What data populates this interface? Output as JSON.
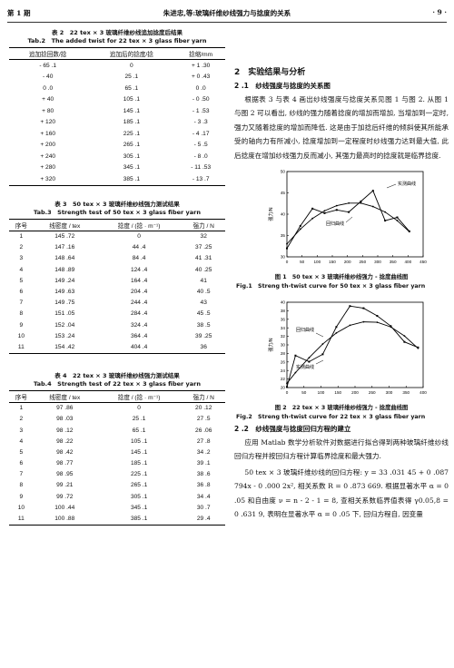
{
  "header": {
    "issue": "第 1 期",
    "running_title": "朱进忠,等:玻璃纤维纱线强力与捻度的关系",
    "page": "· 9 ·"
  },
  "table2": {
    "caption_cn": "表 2　22 tex × 3 玻璃纤维纱线追加捻度后结果",
    "caption_en": "Tab.2　The added twist for 22 tex × 3 glass fiber yarn",
    "headers": [
      "追加捻回数/捻",
      "追加后的捻度/捻",
      "捻缩/mm"
    ],
    "rows": [
      [
        "- 65 .1",
        "0",
        "+ 1 .30"
      ],
      [
        "- 40",
        "25 .1",
        "+ 0 .43"
      ],
      [
        "0 .0",
        "65 .1",
        "0 .0"
      ],
      [
        "+ 40",
        "105 .1",
        "- 0 .50"
      ],
      [
        "+ 80",
        "145 .1",
        "- 1 .53"
      ],
      [
        "+ 120",
        "185 .1",
        "- 3 .3"
      ],
      [
        "+ 160",
        "225 .1",
        "- 4 .17"
      ],
      [
        "+ 200",
        "265 .1",
        "- 5 .5"
      ],
      [
        "+ 240",
        "305 .1",
        "- 8 .0"
      ],
      [
        "+ 280",
        "345 .1",
        "- 11 .53"
      ],
      [
        "+ 320",
        "385 .1",
        "- 13 .7"
      ]
    ]
  },
  "table3": {
    "caption_cn": "表 3　50 tex × 3 玻璃纤维纱线强力测试结果",
    "caption_en": "Tab.3　Strength test of 50 tex × 3 glass fiber yarn",
    "headers": [
      "序号",
      "线密度 / tex",
      "捻度 / (捻 · m⁻¹)",
      "强力 / N"
    ],
    "rows": [
      [
        "1",
        "145 .72",
        "0",
        "32"
      ],
      [
        "2",
        "147 .16",
        "44 .4",
        "37 .25"
      ],
      [
        "3",
        "148 .64",
        "84 .4",
        "41 .31"
      ],
      [
        "4",
        "148 .89",
        "124 .4",
        "40 .25"
      ],
      [
        "5",
        "149 .24",
        "164 .4",
        "41"
      ],
      [
        "6",
        "149 .63",
        "204 .4",
        "40 .5"
      ],
      [
        "7",
        "149 .75",
        "244 .4",
        "43"
      ],
      [
        "8",
        "151 .05",
        "284 .4",
        "45 .5"
      ],
      [
        "9",
        "152 .04",
        "324 .4",
        "38 .5"
      ],
      [
        "10",
        "153 .24",
        "364 .4",
        "39 .25"
      ],
      [
        "11",
        "154 .42",
        "404 .4",
        "36"
      ]
    ]
  },
  "table4": {
    "caption_cn": "表 4　22 tex × 3 玻璃纤维纱线强力测试结果",
    "caption_en": "Tab.4　Strength test of 22 tex × 3 glass fiber yarn",
    "headers": [
      "序号",
      "线密度 / tex",
      "捻度 / (捻 · m⁻¹)",
      "强力 / N"
    ],
    "rows": [
      [
        "1",
        "97 .86",
        "0",
        "20 .12"
      ],
      [
        "2",
        "98 .03",
        "25 .1",
        "27 .5"
      ],
      [
        "3",
        "98 .12",
        "65 .1",
        "26 .06"
      ],
      [
        "4",
        "98 .22",
        "105 .1",
        "27 .8"
      ],
      [
        "5",
        "98 .42",
        "145 .1",
        "34 .2"
      ],
      [
        "6",
        "98 .77",
        "185 .1",
        "39 .1"
      ],
      [
        "7",
        "98 .95",
        "225 .1",
        "38 .6"
      ],
      [
        "8",
        "99 .21",
        "265 .1",
        "36 .8"
      ],
      [
        "9",
        "99 .72",
        "305 .1",
        "34 .4"
      ],
      [
        "10",
        "100 .44",
        "345 .1",
        "30 .7"
      ],
      [
        "11",
        "100 .88",
        "385 .1",
        "29 .4"
      ]
    ]
  },
  "section": {
    "title": "2　实验结果与分析",
    "sub1": "2 .1　纱线强度与捻度的关系图",
    "para1": "根据表 3 与表 4 画出纱线强度与捻度关系见图 1 与图 2. 从图 1 与图 2 可以看出, 纱线的强力随着捻度的增加而增加, 当增加到一定时, 强力又随着捻度的增加而降低. 这是由于加捻后纤维的倾斜使其所能承受的轴向力有所减小, 捻度增加到一定程度时纱线强力达到最大值, 此后捻度在增加纱线强力反而减小, 其强力最高时的捻度就是临界捻度.",
    "sub2": "2 .2　纱线强度与捻度回归方程的建立",
    "para2": "应用 Matlab 数学分析软件对数据进行拟合得到两种玻璃纤维纱线回归方程并按回归方程计算临界捻度和最大强力.",
    "para3": "50 tex × 3 玻璃纤维纱线的回归方程: y = 33 .031 45 + 0 .087 794x - 0 .000 2x², 相关系数 R = 0 .873 669. 根据显著水平 α = 0 .05 和自由度 ν = n - 2 - 1 = 8, 查相关系数临界值表得 γ0.05,8 = 0 .631 9, 表明在显著水平 α = 0 .05 下, 回归方程自, 因变量"
  },
  "fig1": {
    "caption_cn": "图 1　50 tex × 3 玻璃纤维纱线强力 - 捻度曲线图",
    "caption_en": "Fig.1　Streng th-twist curve for 50 tex × 3 glass fiber yarn",
    "label_measured": "实测曲线",
    "label_regression": "回归曲线",
    "ylabel": "强力/N"
  },
  "fig2": {
    "caption_cn": "图 2　22 tex × 3 玻璃纤维纱线强力 - 捻度曲线图",
    "caption_en": "Fig.2　Streng th-twist curve for 22 tex × 3 glass fiber yarn",
    "label_measured": "实测曲线",
    "label_regression": "回归曲线",
    "ylabel": "强力/N"
  },
  "chart_data": [
    {
      "type": "line",
      "ylabel": "强力/N",
      "xlim": [
        0,
        450
      ],
      "ylim": [
        30,
        50
      ],
      "xticks": [
        0,
        50,
        100,
        150,
        200,
        250,
        300,
        350,
        400,
        450
      ],
      "yticks": [
        30,
        35,
        40,
        45,
        50
      ],
      "series": [
        {
          "name": "实测曲线",
          "x": [
            0,
            44.4,
            84.4,
            124.4,
            164.4,
            204.4,
            244.4,
            284.4,
            324.4,
            364.4,
            404.4
          ],
          "y": [
            32,
            37.25,
            41.31,
            40.25,
            41,
            40.5,
            43,
            45.5,
            38.5,
            39.25,
            36
          ]
        },
        {
          "name": "回归曲线",
          "x": [
            0,
            44.4,
            84.4,
            124.4,
            164.4,
            204.4,
            244.4,
            284.4,
            324.4,
            364.4,
            404.4
          ],
          "y": [
            33.03,
            36.5,
            39.0,
            40.8,
            42.0,
            42.6,
            42.6,
            41.8,
            40.5,
            38.5,
            35.9
          ]
        }
      ]
    },
    {
      "type": "line",
      "ylabel": "强力/N",
      "xlim": [
        0,
        400
      ],
      "ylim": [
        20,
        40
      ],
      "xticks": [
        0,
        50,
        100,
        150,
        200,
        250,
        300,
        350,
        400
      ],
      "yticks": [
        20,
        22,
        24,
        26,
        28,
        30,
        32,
        34,
        36,
        38,
        40
      ],
      "series": [
        {
          "name": "实测曲线",
          "x": [
            0,
            25.1,
            65.1,
            105.1,
            145.1,
            185.1,
            225.1,
            265.1,
            305.1,
            345.1,
            385.1
          ],
          "y": [
            20.12,
            27.5,
            26.06,
            27.8,
            34.2,
            39.1,
            38.6,
            36.8,
            34.4,
            30.7,
            29.4
          ]
        },
        {
          "name": "回归曲线",
          "x": [
            0,
            25.1,
            65.1,
            105.1,
            145.1,
            185.1,
            225.1,
            265.1,
            305.1,
            345.1,
            385.1
          ],
          "y": [
            21.0,
            23.5,
            27.0,
            30.2,
            32.8,
            34.6,
            35.4,
            35.3,
            34.2,
            32.1,
            29.2
          ]
        }
      ]
    }
  ]
}
